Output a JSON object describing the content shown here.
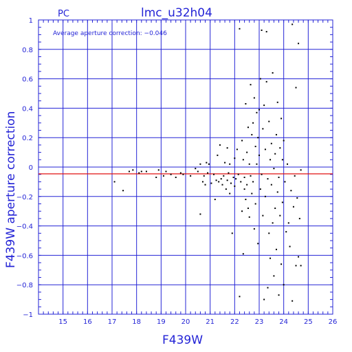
{
  "chart_data": {
    "type": "scatter",
    "title": "lmc_u32h04",
    "label_left": "PC",
    "xlabel": "F439W",
    "ylabel": "F439W aperture correction",
    "annotation": "Average aperture correction: −0.046",
    "xlim": [
      14,
      26
    ],
    "ylim": [
      -1,
      1
    ],
    "x_ticks": [
      15,
      16,
      17,
      18,
      19,
      20,
      21,
      22,
      23,
      24,
      25,
      26
    ],
    "y_ticks": [
      -1,
      -0.8,
      -0.6,
      -0.4,
      -0.2,
      0,
      0.2,
      0.4,
      0.6,
      0.8,
      1
    ],
    "x_tick_labels": [
      "15",
      "16",
      "17",
      "18",
      "19",
      "20",
      "21",
      "22",
      "23",
      "24",
      "25",
      "26"
    ],
    "y_tick_labels": [
      "−1",
      "−0.8",
      "−0.6",
      "−0.4",
      "−0.2",
      "0",
      "0.2",
      "0.4",
      "0.6",
      "0.8",
      "1"
    ],
    "grid": true,
    "colors": {
      "axes": "#2323d6",
      "points": "#000000",
      "reference_line": "#e01010"
    },
    "reference_line_y": -0.046,
    "points": [
      [
        17.1,
        -0.1
      ],
      [
        17.45,
        -0.16
      ],
      [
        17.7,
        -0.03
      ],
      [
        17.85,
        -0.02
      ],
      [
        18.1,
        -0.04
      ],
      [
        18.2,
        -0.03
      ],
      [
        18.4,
        -0.03
      ],
      [
        18.8,
        -0.07
      ],
      [
        18.9,
        -0.02
      ],
      [
        19.1,
        -0.06
      ],
      [
        19.2,
        -0.03
      ],
      [
        19.4,
        -0.05
      ],
      [
        19.6,
        -0.07
      ],
      [
        19.8,
        -0.04
      ],
      [
        19.9,
        -0.05
      ],
      [
        20.2,
        -0.06
      ],
      [
        20.4,
        -0.01
      ],
      [
        20.5,
        -0.03
      ],
      [
        20.6,
        0.02
      ],
      [
        20.6,
        -0.32
      ],
      [
        20.7,
        -0.1
      ],
      [
        20.75,
        -0.06
      ],
      [
        20.8,
        -0.12
      ],
      [
        20.85,
        0.03
      ],
      [
        20.9,
        -0.04
      ],
      [
        20.95,
        0.02
      ],
      [
        21.05,
        -0.11
      ],
      [
        21.15,
        -0.05
      ],
      [
        21.2,
        -0.22
      ],
      [
        21.25,
        -0.09
      ],
      [
        21.3,
        0.08
      ],
      [
        21.35,
        -0.1
      ],
      [
        21.4,
        0.15
      ],
      [
        21.45,
        -0.08
      ],
      [
        21.5,
        -0.12
      ],
      [
        21.55,
        -0.06
      ],
      [
        21.6,
        0.03
      ],
      [
        21.65,
        -0.15
      ],
      [
        21.7,
        -0.09
      ],
      [
        21.7,
        0.13
      ],
      [
        21.75,
        -0.04
      ],
      [
        21.8,
        -0.18
      ],
      [
        21.8,
        0.02
      ],
      [
        21.85,
        -0.11
      ],
      [
        21.9,
        -0.45
      ],
      [
        21.95,
        -0.07
      ],
      [
        22.0,
        -0.13
      ],
      [
        22.0,
        0.06
      ],
      [
        22.05,
        -0.08
      ],
      [
        22.1,
        0.12
      ],
      [
        22.15,
        -0.05
      ],
      [
        22.2,
        0.94
      ],
      [
        22.2,
        -0.88
      ],
      [
        22.25,
        -0.1
      ],
      [
        22.3,
        0.18
      ],
      [
        22.3,
        -0.3
      ],
      [
        22.35,
        0.05
      ],
      [
        22.35,
        -0.59
      ],
      [
        22.4,
        -0.07
      ],
      [
        22.4,
        -0.15
      ],
      [
        22.45,
        0.43
      ],
      [
        22.45,
        -0.22
      ],
      [
        22.5,
        0.1
      ],
      [
        22.5,
        -0.12
      ],
      [
        22.55,
        0.27
      ],
      [
        22.55,
        -0.28
      ],
      [
        22.6,
        0.02
      ],
      [
        22.6,
        -0.34
      ],
      [
        22.65,
        0.56
      ],
      [
        22.65,
        -0.06
      ],
      [
        22.7,
        0.22
      ],
      [
        22.7,
        -0.18
      ],
      [
        22.75,
        0.3
      ],
      [
        22.75,
        -0.1
      ],
      [
        22.8,
        0.47
      ],
      [
        22.8,
        -0.42
      ],
      [
        22.85,
        0.14
      ],
      [
        22.85,
        -0.25
      ],
      [
        22.9,
        0.37
      ],
      [
        22.9,
        0.02
      ],
      [
        22.95,
        0.2
      ],
      [
        22.95,
        -0.52
      ],
      [
        23.0,
        0.39
      ],
      [
        23.0,
        0.08
      ],
      [
        23.05,
        -0.15
      ],
      [
        23.05,
        0.6
      ],
      [
        23.1,
        0.93
      ],
      [
        23.1,
        -0.05
      ],
      [
        23.15,
        0.26
      ],
      [
        23.15,
        -0.33
      ],
      [
        23.2,
        0.42
      ],
      [
        23.2,
        -0.9
      ],
      [
        23.25,
        0.12
      ],
      [
        23.25,
        -0.2
      ],
      [
        23.3,
        0.58
      ],
      [
        23.3,
        0.92
      ],
      [
        23.35,
        -0.08
      ],
      [
        23.35,
        -0.82
      ],
      [
        23.4,
        0.31
      ],
      [
        23.4,
        -0.45
      ],
      [
        23.45,
        0.05
      ],
      [
        23.45,
        -0.62
      ],
      [
        23.5,
        0.16
      ],
      [
        23.5,
        -0.12
      ],
      [
        23.55,
        0.64
      ],
      [
        23.55,
        -0.38
      ],
      [
        23.6,
        -0.01
      ],
      [
        23.6,
        -0.74
      ],
      [
        23.65,
        0.09
      ],
      [
        23.65,
        -0.28
      ],
      [
        23.7,
        0.22
      ],
      [
        23.7,
        -0.56
      ],
      [
        23.75,
        0.44
      ],
      [
        23.75,
        -0.17
      ],
      [
        23.8,
        -0.07
      ],
      [
        23.8,
        -0.87
      ],
      [
        23.85,
        0.13
      ],
      [
        23.85,
        -0.33
      ],
      [
        23.9,
        0.33
      ],
      [
        23.9,
        -0.66
      ],
      [
        23.95,
        0.05
      ],
      [
        23.95,
        -0.24
      ],
      [
        24.0,
        0.18
      ],
      [
        24.0,
        -0.8
      ],
      [
        24.05,
        -0.1
      ],
      [
        24.1,
        -0.44
      ],
      [
        24.15,
        0.02
      ],
      [
        24.2,
        -0.38
      ],
      [
        24.25,
        -0.54
      ],
      [
        24.3,
        -0.16
      ],
      [
        24.35,
        0.97
      ],
      [
        24.35,
        -0.91
      ],
      [
        24.4,
        -0.27
      ],
      [
        24.45,
        -0.06
      ],
      [
        24.5,
        0.54
      ],
      [
        24.5,
        -0.67
      ],
      [
        24.55,
        -0.21
      ],
      [
        24.6,
        0.84
      ],
      [
        24.6,
        -0.61
      ],
      [
        24.65,
        -0.35
      ],
      [
        24.7,
        -0.02
      ],
      [
        24.7,
        -0.67
      ]
    ]
  }
}
